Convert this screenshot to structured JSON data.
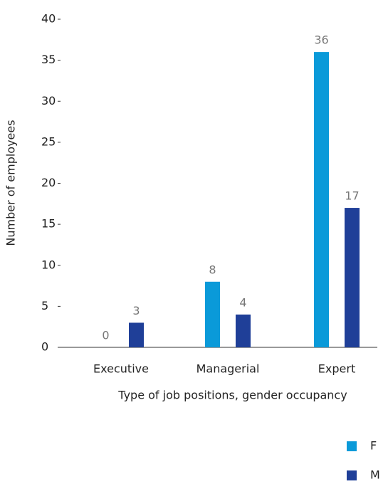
{
  "chart_data": {
    "type": "bar",
    "x_label": "Type of job positions, gender occupancy",
    "y_label": "Number of employees",
    "categories": [
      "Executive",
      "Managerial",
      "Expert"
    ],
    "series": [
      {
        "name": "F",
        "color": "#0a9ad9",
        "values": [
          0,
          8,
          36
        ]
      },
      {
        "name": "M",
        "color": "#1f3f98",
        "values": [
          3,
          4,
          17
        ]
      }
    ],
    "ylim": [
      0,
      40
    ],
    "yticks": [
      0,
      5,
      10,
      15,
      20,
      25,
      30,
      35,
      40
    ],
    "grid": false,
    "legend": "bottom-right"
  }
}
